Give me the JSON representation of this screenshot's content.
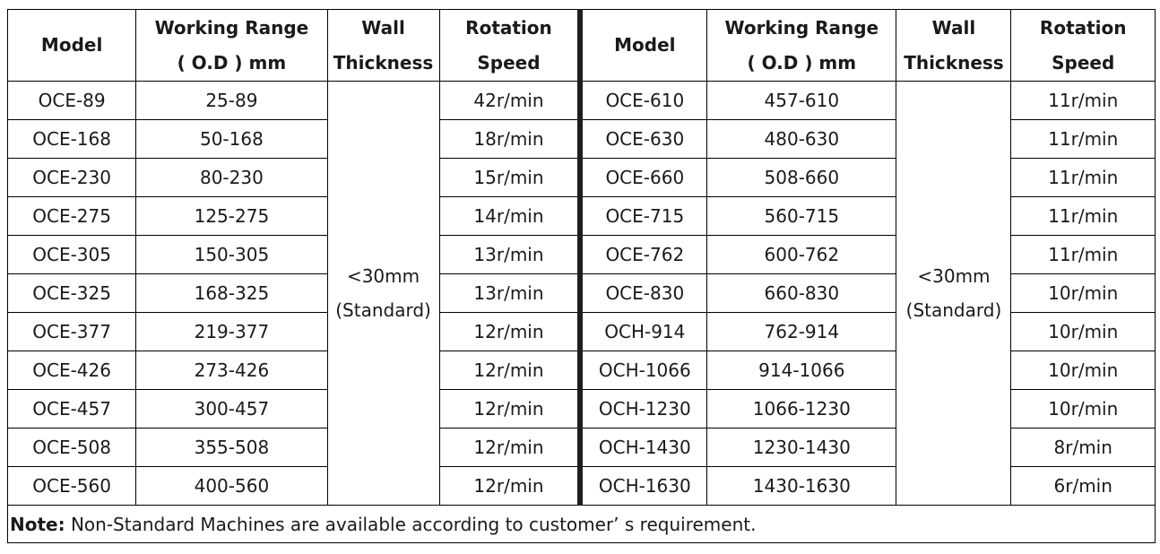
{
  "headers": {
    "left": {
      "model": "Model",
      "range_line1": "Working Range",
      "range_line2": "( O.D ) mm",
      "wall_line1": "Wall",
      "wall_line2": "Thickness",
      "speed_line1": "Rotation",
      "speed_line2": "Speed"
    },
    "right": {
      "model": "Model",
      "range_line1": "Working Range",
      "range_line2": "( O.D ) mm",
      "wall_line1": "Wall",
      "wall_line2": "Thickness",
      "speed_line1": "Rotation",
      "speed_line2": "Speed"
    }
  },
  "wall_thickness": {
    "left": {
      "value": "<30mm",
      "note": "(Standard)"
    },
    "right": {
      "value": "<30mm",
      "note": "(Standard)"
    }
  },
  "rows": [
    {
      "left": {
        "model": "OCE-89",
        "range": "25-89",
        "speed": "42r/min"
      },
      "right": {
        "model": "OCE-610",
        "range": "457-610",
        "speed": "11r/min"
      }
    },
    {
      "left": {
        "model": "OCE-168",
        "range": "50-168",
        "speed": "18r/min"
      },
      "right": {
        "model": "OCE-630",
        "range": "480-630",
        "speed": "11r/min"
      }
    },
    {
      "left": {
        "model": "OCE-230",
        "range": "80-230",
        "speed": "15r/min"
      },
      "right": {
        "model": "OCE-660",
        "range": "508-660",
        "speed": "11r/min"
      }
    },
    {
      "left": {
        "model": "OCE-275",
        "range": "125-275",
        "speed": "14r/min"
      },
      "right": {
        "model": "OCE-715",
        "range": "560-715",
        "speed": "11r/min"
      }
    },
    {
      "left": {
        "model": "OCE-305",
        "range": "150-305",
        "speed": "13r/min"
      },
      "right": {
        "model": "OCE-762",
        "range": "600-762",
        "speed": "11r/min"
      }
    },
    {
      "left": {
        "model": "OCE-325",
        "range": "168-325",
        "speed": "13r/min"
      },
      "right": {
        "model": "OCE-830",
        "range": "660-830",
        "speed": "10r/min"
      }
    },
    {
      "left": {
        "model": "OCE-377",
        "range": "219-377",
        "speed": "12r/min"
      },
      "right": {
        "model": "OCH-914",
        "range": "762-914",
        "speed": "10r/min"
      }
    },
    {
      "left": {
        "model": "OCE-426",
        "range": "273-426",
        "speed": "12r/min"
      },
      "right": {
        "model": "OCH-1066",
        "range": "914-1066",
        "speed": "10r/min"
      }
    },
    {
      "left": {
        "model": "OCE-457",
        "range": "300-457",
        "speed": "12r/min"
      },
      "right": {
        "model": "OCH-1230",
        "range": "1066-1230",
        "speed": "10r/min"
      }
    },
    {
      "left": {
        "model": "OCE-508",
        "range": "355-508",
        "speed": "12r/min"
      },
      "right": {
        "model": "OCH-1430",
        "range": "1230-1430",
        "speed": "8r/min"
      }
    },
    {
      "left": {
        "model": "OCE-560",
        "range": "400-560",
        "speed": "12r/min"
      },
      "right": {
        "model": "OCH-1630",
        "range": "1430-1630",
        "speed": "6r/min"
      }
    }
  ],
  "note": {
    "label": "Note:",
    "text": " Non-Standard Machines are available according to customer’ s requirement."
  }
}
